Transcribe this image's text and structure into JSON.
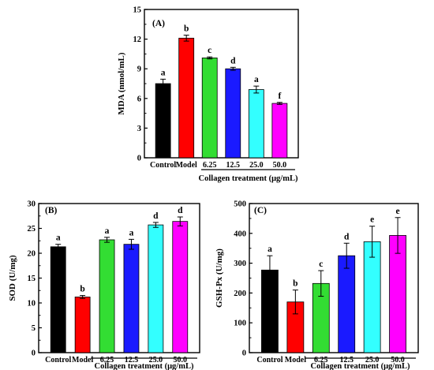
{
  "chart_data": [
    {
      "type": "bar",
      "panel_label": "(A)",
      "title": "",
      "xlabel": "",
      "ylabel": "MDA (nmol/mL)",
      "ylim": [
        0,
        15
      ],
      "yticks": [
        0,
        3,
        6,
        9,
        12,
        15
      ],
      "categories": [
        "Control",
        "Model",
        "6.25",
        "12.5",
        "25.0",
        "50.0"
      ],
      "values": [
        7.5,
        12.1,
        10.1,
        9.0,
        6.9,
        5.5
      ],
      "errors": [
        0.45,
        0.3,
        0.1,
        0.15,
        0.35,
        0.1
      ],
      "significance": [
        "a",
        "b",
        "c",
        "d",
        "a",
        "f"
      ],
      "colors": [
        "#000000",
        "#ff0000",
        "#33dd33",
        "#1a1aff",
        "#33ffff",
        "#ff00ff"
      ],
      "group_label": "Collagen treatment (μg/mL)",
      "grid": false
    },
    {
      "type": "bar",
      "panel_label": "(B)",
      "title": "",
      "xlabel": "",
      "ylabel": "SOD (U/mg)",
      "ylim": [
        0,
        30
      ],
      "yticks": [
        0,
        5,
        10,
        15,
        20,
        25,
        30
      ],
      "categories": [
        "Control",
        "Model",
        "6.25",
        "12.5",
        "25.0",
        "50.0"
      ],
      "values": [
        21.3,
        11.2,
        22.7,
        21.8,
        25.7,
        26.4
      ],
      "errors": [
        0.5,
        0.3,
        0.5,
        1.0,
        0.5,
        0.9
      ],
      "significance": [
        "a",
        "b",
        "a",
        "a",
        "d",
        "d"
      ],
      "colors": [
        "#000000",
        "#ff0000",
        "#33dd33",
        "#1a1aff",
        "#33ffff",
        "#ff00ff"
      ],
      "group_label": "Collagen treatment (μg/mL)",
      "grid": false
    },
    {
      "type": "bar",
      "panel_label": "(C)",
      "title": "",
      "xlabel": "",
      "ylabel": "GSH-Px (U/mg)",
      "ylim": [
        0,
        500
      ],
      "yticks": [
        0,
        100,
        200,
        300,
        400,
        500
      ],
      "categories": [
        "Control",
        "Model",
        "6.25",
        "12.5",
        "25.0",
        "50.0"
      ],
      "values": [
        277,
        170,
        232,
        325,
        372,
        393
      ],
      "errors": [
        48,
        40,
        43,
        42,
        52,
        60
      ],
      "significance": [
        "a",
        "b",
        "c",
        "d",
        "e",
        "e"
      ],
      "colors": [
        "#000000",
        "#ff0000",
        "#33dd33",
        "#1a1aff",
        "#33ffff",
        "#ff00ff"
      ],
      "group_label": "Collagen treatment (μg/mL)",
      "grid": false
    }
  ]
}
